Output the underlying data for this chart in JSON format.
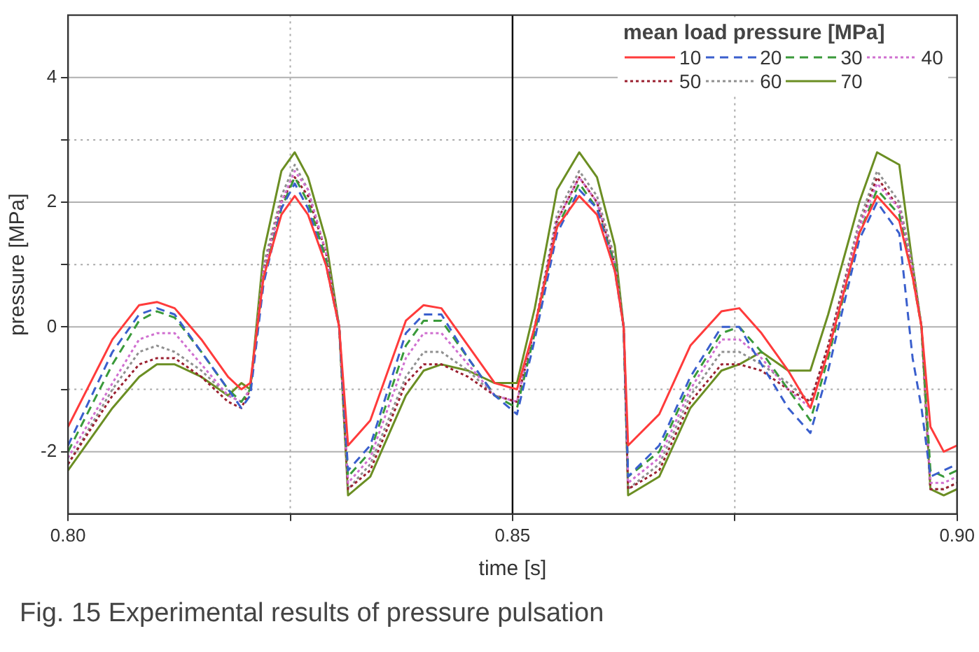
{
  "chart_data": {
    "type": "line",
    "xlabel": "time [s]",
    "ylabel": "pressure [MPa]",
    "legend_title": "mean load pressure [MPa]",
    "x": [
      0.8,
      0.805,
      0.808,
      0.81,
      0.812,
      0.815,
      0.818,
      0.8195,
      0.8205,
      0.822,
      0.824,
      0.8255,
      0.827,
      0.829,
      0.8305,
      0.8315,
      0.834,
      0.838,
      0.84,
      0.842,
      0.845,
      0.848,
      0.8505,
      0.8525,
      0.855,
      0.8575,
      0.8595,
      0.8615,
      0.8625,
      0.863,
      0.8665,
      0.87,
      0.8735,
      0.8755,
      0.878,
      0.881,
      0.8835,
      0.8855,
      0.889,
      0.891,
      0.8935,
      0.895,
      0.896,
      0.897,
      0.8985,
      0.9
    ],
    "series": [
      {
        "name": "10",
        "color": "#ff3b3b",
        "line_style": "solid",
        "values": [
          -1.6,
          -0.2,
          0.35,
          0.4,
          0.3,
          -0.2,
          -0.8,
          -1.0,
          -0.9,
          0.8,
          1.8,
          2.1,
          1.8,
          1.0,
          0.0,
          -1.9,
          -1.5,
          0.1,
          0.35,
          0.3,
          -0.3,
          -0.9,
          -1.0,
          0.0,
          1.6,
          2.1,
          1.8,
          0.9,
          0.0,
          -1.9,
          -1.4,
          -0.3,
          0.25,
          0.3,
          -0.1,
          -0.7,
          -1.3,
          -0.4,
          1.5,
          2.1,
          1.7,
          0.8,
          0.0,
          -1.6,
          -2.0,
          -1.9
        ]
      },
      {
        "name": "20",
        "color": "#3a5fcd",
        "line_style": "dashed",
        "values": [
          -1.9,
          -0.4,
          0.2,
          0.3,
          0.2,
          -0.4,
          -1.0,
          -1.3,
          -1.1,
          0.7,
          1.9,
          2.3,
          1.9,
          1.0,
          0.0,
          -2.3,
          -1.9,
          -0.1,
          0.2,
          0.2,
          -0.5,
          -1.1,
          -1.4,
          -0.2,
          1.5,
          2.2,
          1.9,
          0.9,
          0.0,
          -2.4,
          -1.9,
          -0.8,
          0.0,
          0.0,
          -0.6,
          -1.3,
          -1.7,
          -0.7,
          1.4,
          2.0,
          1.5,
          -0.5,
          -1.3,
          -2.4,
          -2.3,
          -2.2
        ]
      },
      {
        "name": "30",
        "color": "#3a9a3a",
        "line_style": "dashed",
        "values": [
          -2.0,
          -0.6,
          0.1,
          0.25,
          0.15,
          -0.4,
          -1.0,
          -1.2,
          -1.0,
          0.8,
          1.9,
          2.4,
          2.0,
          1.1,
          0.0,
          -2.4,
          -2.0,
          -0.3,
          0.1,
          0.1,
          -0.5,
          -1.1,
          -1.3,
          -0.1,
          1.6,
          2.3,
          1.9,
          1.0,
          0.0,
          -2.4,
          -2.0,
          -0.9,
          -0.1,
          0.0,
          -0.4,
          -1.0,
          -1.5,
          -0.5,
          1.5,
          2.2,
          1.8,
          0.8,
          0.0,
          -2.3,
          -2.4,
          -2.3
        ]
      },
      {
        "name": "40",
        "color": "#d070d0",
        "line_style": "dotted",
        "values": [
          -2.1,
          -0.9,
          -0.2,
          -0.1,
          -0.1,
          -0.6,
          -1.1,
          -1.2,
          -1.0,
          0.9,
          2.0,
          2.5,
          2.2,
          1.2,
          0.0,
          -2.5,
          -2.1,
          -0.5,
          -0.1,
          -0.1,
          -0.6,
          -1.1,
          -1.2,
          0.0,
          1.7,
          2.4,
          2.0,
          1.0,
          0.0,
          -2.5,
          -2.1,
          -1.0,
          -0.2,
          -0.2,
          -0.5,
          -1.0,
          -1.3,
          -0.4,
          1.6,
          2.3,
          1.9,
          0.9,
          0.0,
          -2.5,
          -2.5,
          -2.4
        ]
      },
      {
        "name": "50",
        "color": "#9b2030",
        "line_style": "dotted",
        "values": [
          -2.2,
          -1.1,
          -0.6,
          -0.5,
          -0.5,
          -0.8,
          -1.2,
          -1.3,
          -1.0,
          0.9,
          2.0,
          2.4,
          2.1,
          1.2,
          0.0,
          -2.6,
          -2.3,
          -0.9,
          -0.6,
          -0.6,
          -0.8,
          -1.1,
          -1.2,
          0.0,
          1.7,
          2.4,
          2.0,
          1.0,
          0.0,
          -2.6,
          -2.3,
          -1.2,
          -0.6,
          -0.6,
          -0.7,
          -1.0,
          -1.2,
          -0.3,
          1.6,
          2.4,
          1.9,
          0.9,
          0.0,
          -2.6,
          -2.6,
          -2.5
        ]
      },
      {
        "name": "60",
        "color": "#909090",
        "line_style": "dotted",
        "values": [
          -2.2,
          -1.0,
          -0.4,
          -0.3,
          -0.4,
          -0.7,
          -1.1,
          -1.2,
          -1.0,
          1.0,
          2.1,
          2.6,
          2.2,
          1.2,
          0.0,
          -2.6,
          -2.2,
          -0.8,
          -0.4,
          -0.4,
          -0.7,
          -1.1,
          -1.2,
          0.0,
          1.8,
          2.5,
          2.1,
          1.1,
          0.0,
          -2.6,
          -2.2,
          -1.1,
          -0.4,
          -0.4,
          -0.6,
          -0.9,
          -1.2,
          -0.3,
          1.7,
          2.5,
          2.0,
          1.0,
          0.0,
          -2.6,
          -2.6,
          -2.5
        ]
      },
      {
        "name": "70",
        "color": "#6b8e23",
        "line_style": "solid",
        "values": [
          -2.3,
          -1.3,
          -0.8,
          -0.6,
          -0.6,
          -0.8,
          -1.1,
          -0.9,
          -1.0,
          1.2,
          2.5,
          2.8,
          2.4,
          1.4,
          0.0,
          -2.7,
          -2.4,
          -1.1,
          -0.7,
          -0.6,
          -0.7,
          -0.9,
          -0.9,
          0.3,
          2.2,
          2.8,
          2.4,
          1.3,
          0.0,
          -2.7,
          -2.4,
          -1.3,
          -0.7,
          -0.6,
          -0.4,
          -0.7,
          -0.7,
          0.2,
          2.0,
          2.8,
          2.6,
          1.0,
          0.0,
          -2.6,
          -2.7,
          -2.6
        ]
      }
    ],
    "xlim": [
      0.8,
      0.9
    ],
    "xticks": [
      {
        "value": 0.8,
        "label": "0.80"
      },
      {
        "value": 0.825,
        "label": null
      },
      0.85,
      {
        "value": 0.875,
        "label": null
      },
      {
        "value": 0.9,
        "label": "0.90"
      }
    ],
    "ylim": [
      -3,
      5
    ],
    "yticks": [
      -2,
      {
        "value": -1,
        "label": null
      },
      0,
      {
        "value": 1,
        "label": null
      },
      2,
      {
        "value": 3,
        "label": null
      },
      4
    ],
    "ref_lines": [
      {
        "axis": "x",
        "value": 0.85,
        "label": null,
        "color": "#000000"
      }
    ],
    "grid": true,
    "legend": "top right",
    "marker": "none",
    "annotations": [
      "Fig. 15 Experimental results of pressure pulsation"
    ]
  }
}
